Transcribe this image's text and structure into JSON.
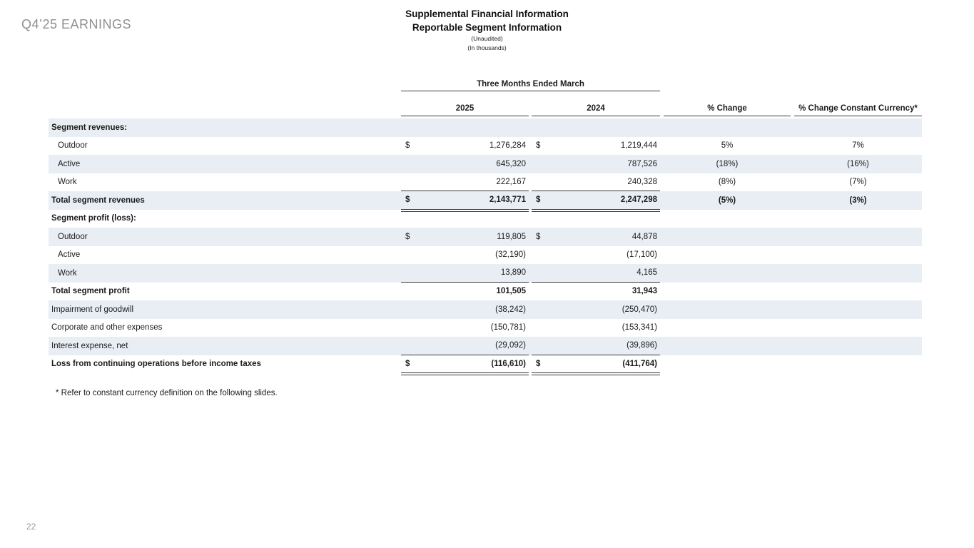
{
  "slide": {
    "eyebrow": "Q4’25 EARNINGS",
    "title_line1": "Supplemental Financial Information",
    "title_line2": "Reportable Segment Information",
    "subtitle1": "(Unaudited)",
    "subtitle2": "(In thousands)",
    "footnote": "* Refer to constant currency definition on the following slides.",
    "page_number": "22"
  },
  "table": {
    "span_header": "Three Months Ended March",
    "columns": {
      "col_2025": "2025",
      "col_2024": "2024",
      "col_pct": "% Change",
      "col_cc": "% Change Constant Currency*"
    },
    "stripe_color": "#e9eef5",
    "rows": [
      {
        "label": "Segment revenues:",
        "section": true,
        "stripe": true
      },
      {
        "label": "Outdoor",
        "indent": true,
        "stripe": false,
        "d1": "$",
        "v1": "1,276,284",
        "d2": "$",
        "v2": "1,219,444",
        "pct": "5%",
        "cc": "7%"
      },
      {
        "label": "Active",
        "indent": true,
        "stripe": true,
        "v1": "645,320",
        "v2": "787,526",
        "pct": "(18%)",
        "cc": "(16%)"
      },
      {
        "label": "Work",
        "indent": true,
        "stripe": false,
        "v1": "222,167",
        "v2": "240,328",
        "pct": "(8%)",
        "cc": "(7%)",
        "rule": "single"
      },
      {
        "label": "Total segment revenues",
        "bold": true,
        "stripe": true,
        "d1": "$",
        "v1": "2,143,771",
        "d2": "$",
        "v2": "2,247,298",
        "pct": "(5%)",
        "cc": "(3%)",
        "rule": "double"
      },
      {
        "label": "Segment profit (loss):",
        "section": true,
        "stripe": false
      },
      {
        "label": "Outdoor",
        "indent": true,
        "stripe": true,
        "d1": "$",
        "v1": "119,805",
        "d2": "$",
        "v2": "44,878"
      },
      {
        "label": "Active",
        "indent": true,
        "stripe": false,
        "v1": "(32,190)",
        "v2": "(17,100)"
      },
      {
        "label": "Work",
        "indent": true,
        "stripe": true,
        "v1": "13,890",
        "v2": "4,165",
        "rule": "single"
      },
      {
        "label": "Total segment profit",
        "bold": true,
        "stripe": false,
        "v1": "101,505",
        "v2": "31,943"
      },
      {
        "label": "Impairment of goodwill",
        "stripe": true,
        "v1": "(38,242)",
        "v2": "(250,470)"
      },
      {
        "label": "Corporate and other expenses",
        "stripe": false,
        "v1": "(150,781)",
        "v2": "(153,341)"
      },
      {
        "label": "Interest expense, net",
        "stripe": true,
        "v1": "(29,092)",
        "v2": "(39,896)",
        "rule": "single"
      },
      {
        "label": "Loss from continuing operations before income taxes",
        "bold": true,
        "stripe": false,
        "d1": "$",
        "v1": "(116,610)",
        "d2": "$",
        "v2": "(411,764)",
        "rule": "double"
      }
    ]
  }
}
